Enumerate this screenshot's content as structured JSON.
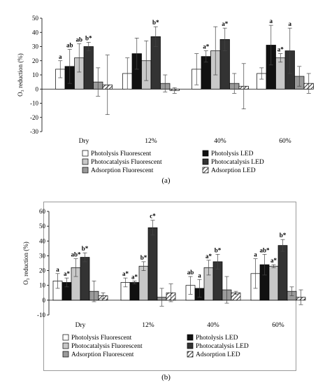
{
  "captions": [
    "(a)",
    "(b)"
  ],
  "chart_data": [
    {
      "type": "bar",
      "ylabel": "O₃ reduction (%)",
      "ylim": [
        -30,
        50
      ],
      "ytick_step": 10,
      "ytick_labels": [
        "-30",
        "-20",
        "-10",
        "0",
        "10",
        "20",
        "30",
        "40",
        "50"
      ],
      "categories": [
        "Dry",
        "12%",
        "40%",
        "60%"
      ],
      "grid": false,
      "legend_position": "bottom",
      "series": [
        {
          "name": "Photolysis Fluorescent",
          "style": "white",
          "values": [
            14,
            11,
            14,
            11
          ],
          "errors": [
            6,
            11,
            11,
            4
          ],
          "labels": [
            "a",
            "",
            "",
            ""
          ]
        },
        {
          "name": "Photolysis LED",
          "style": "black",
          "values": [
            16,
            25,
            23,
            31
          ],
          "errors": [
            12,
            11,
            4,
            14
          ],
          "labels": [
            "ab",
            "",
            "a*",
            "a"
          ]
        },
        {
          "name": "Photocatalysis Fluorescent",
          "style": "lightgray",
          "values": [
            22,
            20,
            27,
            22
          ],
          "errors": [
            10,
            14,
            17,
            3
          ],
          "labels": [
            "ab",
            "",
            "",
            "a*"
          ]
        },
        {
          "name": "Photocatalysis LED",
          "style": "darkgray",
          "values": [
            30,
            37,
            35,
            27
          ],
          "errors": [
            3,
            7,
            8,
            16
          ],
          "labels": [
            "b*",
            "b*",
            "a*",
            "a"
          ]
        },
        {
          "name": "Adsorption Fluorescent",
          "style": "gray",
          "values": [
            5,
            4,
            4,
            9
          ],
          "errors": [
            10,
            6,
            7,
            7
          ],
          "labels": [
            "",
            "",
            "",
            ""
          ]
        },
        {
          "name": "Adsorption LED",
          "style": "hatch",
          "values": [
            3,
            -1,
            2,
            4
          ],
          "errors": [
            21,
            2,
            16,
            7
          ],
          "labels": [
            "",
            "",
            "",
            ""
          ]
        }
      ]
    },
    {
      "type": "bar",
      "ylabel": "O₃ reduction (%)",
      "ylim": [
        -10,
        60
      ],
      "ytick_step": 10,
      "ytick_labels": [
        "-10",
        "0",
        "10",
        "20",
        "30",
        "40",
        "50",
        "60"
      ],
      "categories": [
        "Dry",
        "12%",
        "40%",
        "60%"
      ],
      "grid": false,
      "legend_position": "bottom",
      "series": [
        {
          "name": "Photolysis Fluorescent",
          "style": "white",
          "values": [
            13,
            12,
            10,
            18
          ],
          "errors": [
            5,
            3,
            6,
            10
          ],
          "labels": [
            "a",
            "a*",
            "ab",
            "a"
          ]
        },
        {
          "name": "Photolysis LED",
          "style": "black",
          "values": [
            12,
            12,
            8,
            24
          ],
          "errors": [
            3,
            1,
            6,
            7
          ],
          "labels": [
            "a*",
            "a*",
            "a",
            "ab*"
          ]
        },
        {
          "name": "Photocatalysis Fluorescent",
          "style": "lightgray",
          "values": [
            22,
            23,
            22,
            23
          ],
          "errors": [
            6,
            3,
            5,
            1
          ],
          "labels": [
            "ab*",
            "b*",
            "a*",
            "a*"
          ]
        },
        {
          "name": "Photocatalysis LED",
          "style": "darkgray",
          "values": [
            29,
            49,
            26,
            37
          ],
          "errors": [
            3,
            5,
            5,
            4
          ],
          "labels": [
            "b*",
            "c*",
            "b*",
            "b*"
          ]
        },
        {
          "name": "Adsorption Fluorescent",
          "style": "gray",
          "values": [
            6,
            2,
            7,
            6
          ],
          "errors": [
            7,
            6,
            9,
            3
          ],
          "labels": [
            "",
            "",
            "",
            ""
          ]
        },
        {
          "name": "Adsorption LED",
          "style": "hatch",
          "values": [
            3,
            5,
            5,
            2
          ],
          "errors": [
            2,
            6,
            1,
            5
          ],
          "labels": [
            "",
            "",
            "",
            ""
          ]
        }
      ]
    }
  ]
}
